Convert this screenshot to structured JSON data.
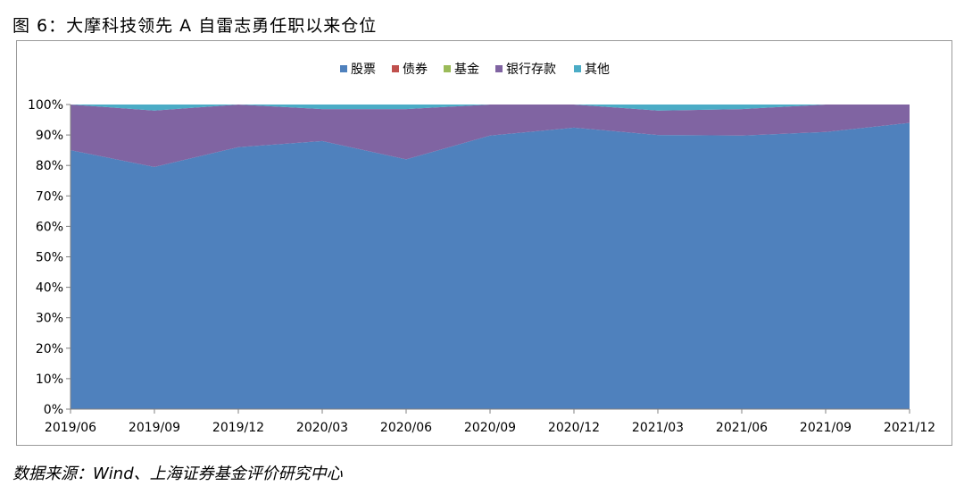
{
  "title": "图 6：大摩科技领先 A 自雷志勇任职以来仓位",
  "source": "数据来源：Wind、上海证券基金评价研究中心",
  "chart_data": {
    "type": "area",
    "stacked": true,
    "categories": [
      "2019/06",
      "2019/09",
      "2019/12",
      "2020/03",
      "2020/06",
      "2020/09",
      "2020/12",
      "2021/03",
      "2021/06",
      "2021/09",
      "2021/12"
    ],
    "y_ticks": [
      "0%",
      "10%",
      "20%",
      "30%",
      "40%",
      "50%",
      "60%",
      "70%",
      "80%",
      "90%",
      "100%"
    ],
    "ylim": [
      0,
      100
    ],
    "legend_position": "top-center",
    "series": [
      {
        "name": "股票",
        "color": "#4f81bd",
        "values": [
          85,
          79.5,
          86,
          88,
          82,
          89.8,
          92.4,
          90,
          89.8,
          91,
          94
        ]
      },
      {
        "name": "债券",
        "color": "#c0504d",
        "values": [
          0,
          0,
          0,
          0,
          0,
          0,
          0,
          0,
          0,
          0,
          0
        ]
      },
      {
        "name": "基金",
        "color": "#9bbb59",
        "values": [
          0,
          0,
          0,
          0,
          0,
          0,
          0,
          0,
          0,
          0,
          0
        ]
      },
      {
        "name": "银行存款",
        "color": "#8064a2",
        "values": [
          15,
          18.5,
          14,
          10.5,
          16.5,
          10.2,
          7.6,
          8,
          8.7,
          9,
          6
        ]
      },
      {
        "name": "其他",
        "color": "#4bacc6",
        "values": [
          0,
          2,
          0,
          1.5,
          1.5,
          0,
          0,
          2,
          1.5,
          0,
          0
        ]
      }
    ]
  }
}
